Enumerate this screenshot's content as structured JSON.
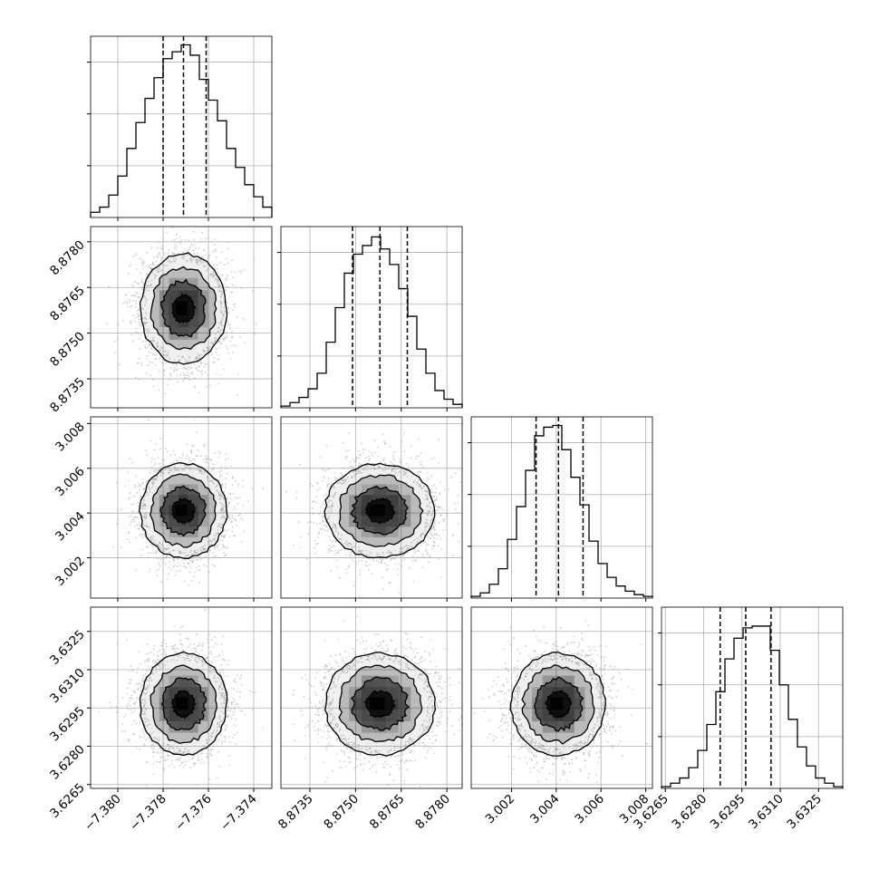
{
  "chart_data": {
    "type": "corner",
    "grid": true,
    "parameters": [
      {
        "name": "",
        "range": [
          -7.3812,
          -7.3732
        ],
        "ticks": [
          -7.38,
          -7.378,
          -7.376,
          -7.374
        ],
        "tick_labels": [
          "−7.380",
          "−7.378",
          "−7.376",
          "−7.374"
        ],
        "quantiles": [
          -7.378,
          -7.3771,
          -7.3761
        ],
        "histogram": [
          0.3,
          0.6,
          1.3,
          2.4,
          4.0,
          5.5,
          6.9,
          8.1,
          9.2,
          9.6,
          10.0,
          9.4,
          8.0,
          6.8,
          5.6,
          4.0,
          2.9,
          1.9,
          1.2,
          0.6
        ],
        "hist_ylim": [
          0,
          10.5
        ],
        "hist_grid": [
          3.0,
          6.0,
          9.0
        ]
      },
      {
        "name": "",
        "range": [
          8.87255,
          8.8785
        ],
        "ticks": [
          8.8735,
          8.875,
          8.8765,
          8.878
        ],
        "tick_labels": [
          "8.8735",
          "8.8750",
          "8.8765",
          "8.8780"
        ],
        "quantiles": [
          8.8749,
          8.8758,
          8.8767
        ],
        "histogram": [
          0.1,
          0.3,
          0.6,
          1.1,
          2.0,
          3.8,
          5.8,
          7.8,
          8.9,
          9.4,
          9.9,
          9.2,
          8.3,
          6.9,
          5.3,
          3.4,
          2.0,
          1.0,
          0.5,
          0.2
        ],
        "hist_ylim": [
          0,
          10.5
        ],
        "hist_grid": [
          3.0,
          6.0,
          9.0
        ]
      },
      {
        "name": "",
        "range": [
          3.0002,
          3.0083
        ],
        "ticks": [
          3.002,
          3.004,
          3.006,
          3.008
        ],
        "tick_labels": [
          "3.002",
          "3.004",
          "3.006",
          "3.008"
        ],
        "quantiles": [
          3.0031,
          3.0041,
          3.0052
        ],
        "histogram": [
          0.1,
          0.3,
          0.8,
          1.7,
          3.4,
          5.3,
          7.4,
          9.4,
          9.9,
          10.0,
          8.6,
          7.0,
          5.4,
          3.3,
          2.0,
          1.2,
          0.7,
          0.4,
          0.2,
          0.1
        ],
        "hist_ylim": [
          0,
          10.5
        ],
        "hist_grid": [
          3.0,
          6.0,
          9.0
        ]
      },
      {
        "name": "",
        "range": [
          3.62635,
          3.63345
        ],
        "ticks": [
          3.6265,
          3.628,
          3.6295,
          3.631,
          3.6325
        ],
        "tick_labels": [
          "3.6265",
          "3.6280",
          "3.6295",
          "3.6310",
          "3.6325"
        ],
        "quantiles": [
          3.62865,
          3.62965,
          3.63064
        ],
        "histogram": [
          0.1,
          0.3,
          0.6,
          1.2,
          2.2,
          3.7,
          5.6,
          7.5,
          8.7,
          9.3,
          9.4,
          9.4,
          8.0,
          6.0,
          4.0,
          2.4,
          1.3,
          0.6,
          0.3,
          0.1
        ],
        "hist_ylim": [
          0,
          10.5
        ],
        "hist_grid": [
          3.0,
          6.0,
          9.0
        ]
      }
    ],
    "contour_levels": [
      "0.5 sigma",
      "1 sigma",
      "1.5 sigma",
      "2 sigma"
    ],
    "colors": {
      "line": "#000000",
      "grid": "#b0b0b0",
      "points": "#a8a8a8",
      "density": "#000000"
    }
  }
}
